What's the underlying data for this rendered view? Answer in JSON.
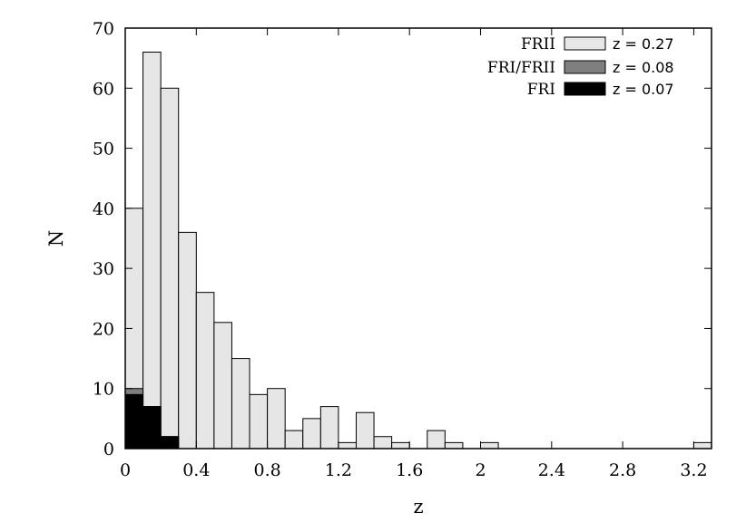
{
  "chart_data": {
    "type": "bar",
    "stacked": true,
    "xlabel": "z",
    "ylabel": "N",
    "xlim": [
      0,
      3.3
    ],
    "ylim": [
      0,
      70
    ],
    "bin_width": 0.1,
    "x_ticks": [
      "0",
      "0.4",
      "0.8",
      "1.2",
      "1.6",
      "2",
      "2.4",
      "2.8",
      "3.2"
    ],
    "y_ticks": [
      "0",
      "10",
      "20",
      "30",
      "40",
      "50",
      "60",
      "70"
    ],
    "legend_position": "top-right",
    "bins": [
      0.0,
      0.1,
      0.2,
      0.3,
      0.4,
      0.5,
      0.6,
      0.7,
      0.8,
      0.9,
      1.0,
      1.1,
      1.2,
      1.3,
      1.4,
      1.5,
      1.6,
      1.7,
      1.8,
      1.9,
      2.0,
      2.1,
      2.2,
      2.3,
      2.4,
      2.5,
      2.6,
      2.7,
      2.8,
      2.9,
      3.0,
      3.1,
      3.2
    ],
    "series": [
      {
        "name": "FRII",
        "annotation": "z = 0.27",
        "color": "#e6e6e6",
        "counts_total": [
          40,
          66,
          60,
          36,
          26,
          21,
          15,
          9,
          10,
          3,
          5,
          7,
          1,
          6,
          2,
          1,
          0,
          3,
          1,
          0,
          1,
          0,
          0,
          0,
          0,
          0,
          0,
          0,
          0,
          0,
          0,
          0,
          1
        ]
      },
      {
        "name": "FRI/FRII",
        "annotation": "z = 0.08",
        "color": "#7f7f7f",
        "counts_total": [
          10,
          7,
          2,
          0,
          0,
          0,
          0,
          0,
          0,
          0,
          0,
          0,
          0,
          0,
          0,
          0,
          0,
          0,
          0,
          0,
          0,
          0,
          0,
          0,
          0,
          0,
          0,
          0,
          0,
          0,
          0,
          0,
          0
        ]
      },
      {
        "name": "FRI",
        "annotation": "z = 0.07",
        "color": "#000000",
        "counts_total": [
          9,
          7,
          2,
          0,
          0,
          0,
          0,
          0,
          0,
          0,
          0,
          0,
          0,
          0,
          0,
          0,
          0,
          0,
          0,
          0,
          0,
          0,
          0,
          0,
          0,
          0,
          0,
          0,
          0,
          0,
          0,
          0,
          0
        ]
      }
    ]
  }
}
